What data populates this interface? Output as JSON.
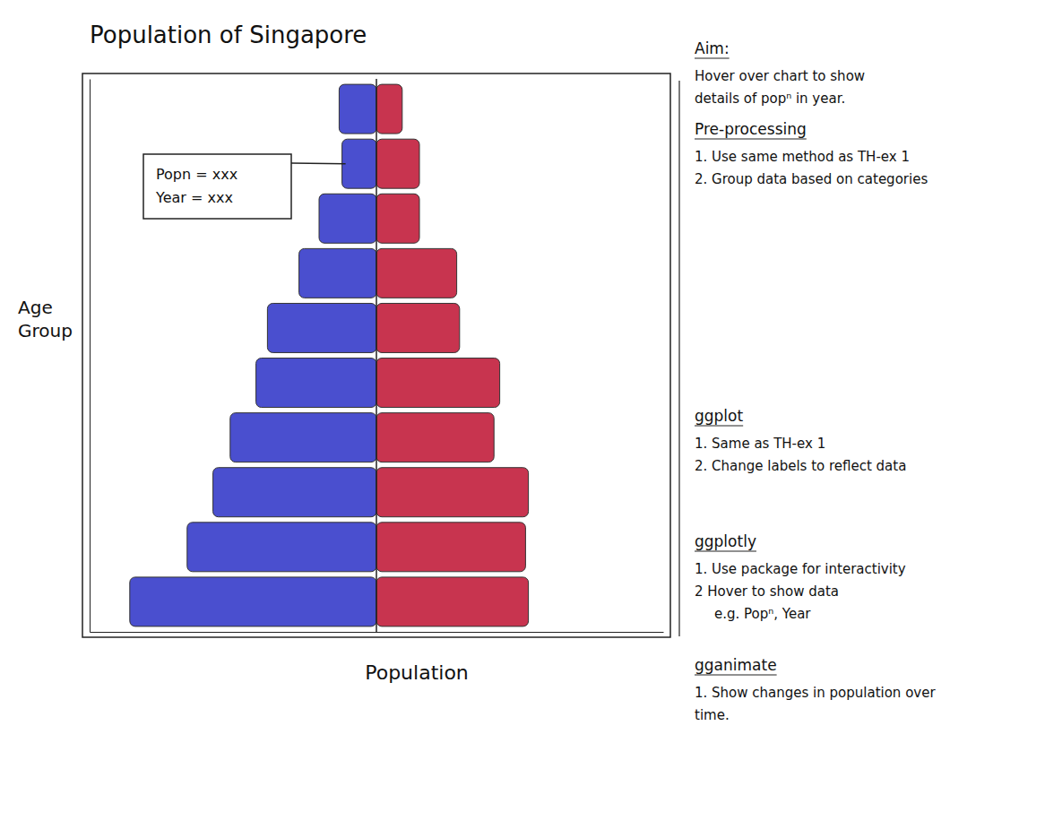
{
  "chart_data": {
    "type": "bar",
    "orientation": "horizontal",
    "title": "Population of Singapore",
    "x_label": "Population",
    "y_label": "Age Group",
    "categories": [
      null,
      null,
      null,
      null,
      null,
      null,
      null,
      null,
      null,
      null
    ],
    "series": [
      {
        "color": "#4a4fcf",
        "values": [
          -13,
          -12,
          -20,
          -27,
          -38,
          -42,
          -51,
          -57,
          -66,
          -86
        ]
      },
      {
        "color": "#c8344f",
        "values": [
          9,
          15,
          15,
          28,
          29,
          43,
          41,
          53,
          52,
          53
        ]
      }
    ],
    "xlim": [
      -100,
      100
    ],
    "tick_labels": false,
    "grid": false,
    "tooltip": {
      "lines": [
        "Popn = xxx",
        "Year = xxx"
      ]
    },
    "notes": [
      {
        "heading": "Aim:",
        "lines": [
          "Hover over chart to show",
          "details of popⁿ in year."
        ]
      },
      {
        "heading": "Pre-processing",
        "lines": [
          "1. Use same method as TH-ex 1",
          "2. Group data based on categories"
        ]
      },
      {
        "heading": "ggplot",
        "lines": [
          "1. Same as TH-ex 1",
          "2. Change labels to reflect data"
        ]
      },
      {
        "heading": "ggplotly",
        "lines": [
          "1. Use package for interactivity",
          "2 Hover to show data",
          "e.g. Popⁿ, Year"
        ]
      },
      {
        "heading": "gganimate",
        "lines": [
          "1. Show changes in population over",
          "time."
        ]
      }
    ]
  }
}
